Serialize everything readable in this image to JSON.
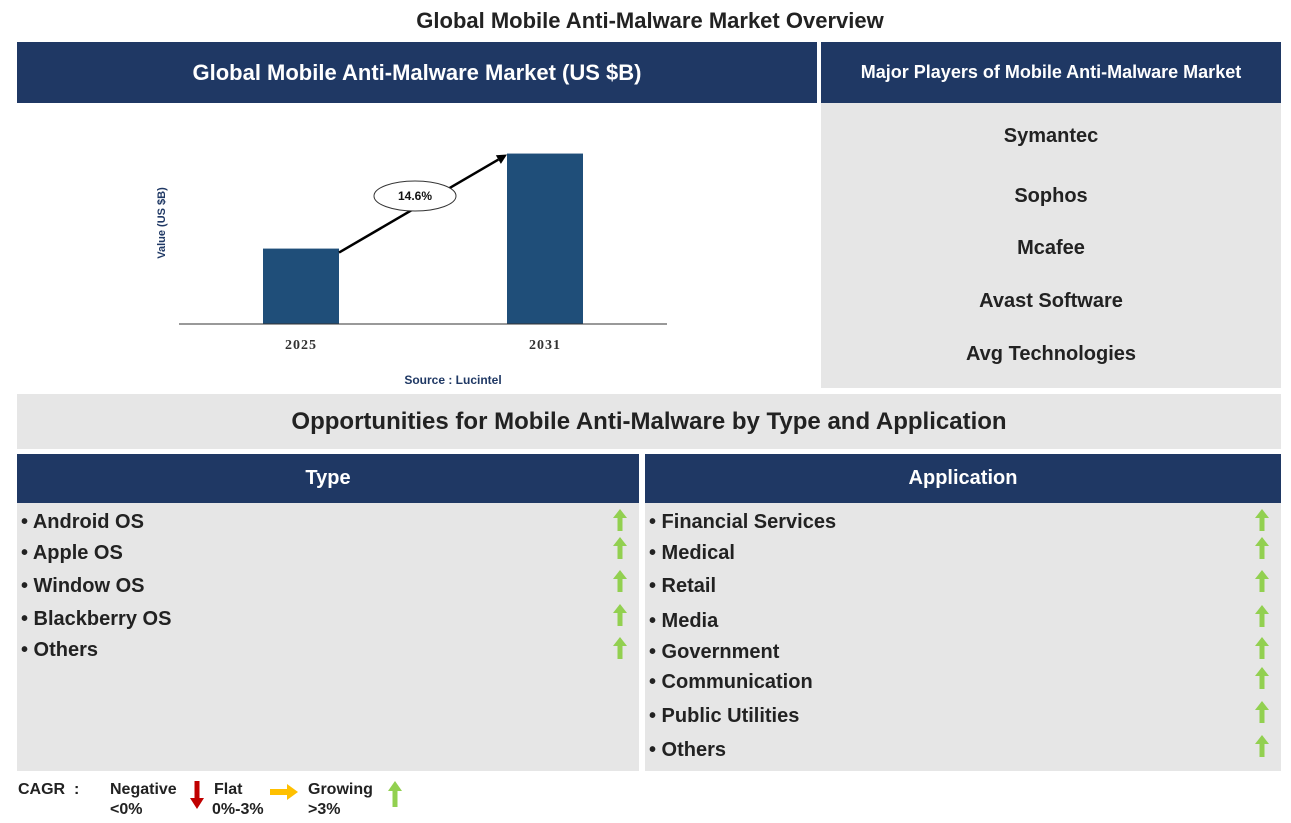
{
  "page_title": "Global Mobile Anti-Malware Market Overview",
  "chart_header": "Global Mobile Anti-Malware Market (US $B)",
  "chart_data": {
    "type": "bar",
    "categories": [
      "2025",
      "2031"
    ],
    "values": [
      1.0,
      2.26
    ],
    "ylabel": "Value (US $B)",
    "xlabel": "",
    "cagr_annotation": "14.6%",
    "source": "Source : Lucintel",
    "bar_color": "#1f4e79",
    "ylim": [
      0,
      2.4
    ],
    "grid": false
  },
  "players": {
    "header": "Major Players of Mobile Anti-Malware Market",
    "items": [
      "Symantec",
      "Sophos",
      "Mcafee",
      "Avast Software",
      "Avg Technologies"
    ]
  },
  "opportunities": {
    "title": "Opportunities for Mobile Anti-Malware by Type and Application",
    "type": {
      "header": "Type",
      "items": [
        "• Android OS",
        "• Apple OS",
        "• Window OS",
        "• Blackberry OS",
        "• Others"
      ]
    },
    "application": {
      "header": "Application",
      "items": [
        "• Financial Services",
        "• Medical",
        "• Retail",
        "• Media",
        "• Government",
        "• Communication",
        "• Public Utilities",
        "• Others"
      ]
    }
  },
  "legend": {
    "cagr_label": "CAGR",
    "colon": ":",
    "negative_label": "Negative",
    "negative_range": "<0%",
    "flat_label": "Flat",
    "flat_range": "0%-3%",
    "growing_label": "Growing",
    "growing_range": ">3%"
  },
  "colors": {
    "navy": "#1f3864",
    "panel_grey": "#e6e6e6",
    "growing_green": "#92d050",
    "negative_red": "#c00000",
    "flat_orange": "#ffc000"
  },
  "icons": {
    "growing": "up-arrow-icon",
    "negative": "down-arrow-icon",
    "flat": "right-arrow-icon"
  }
}
